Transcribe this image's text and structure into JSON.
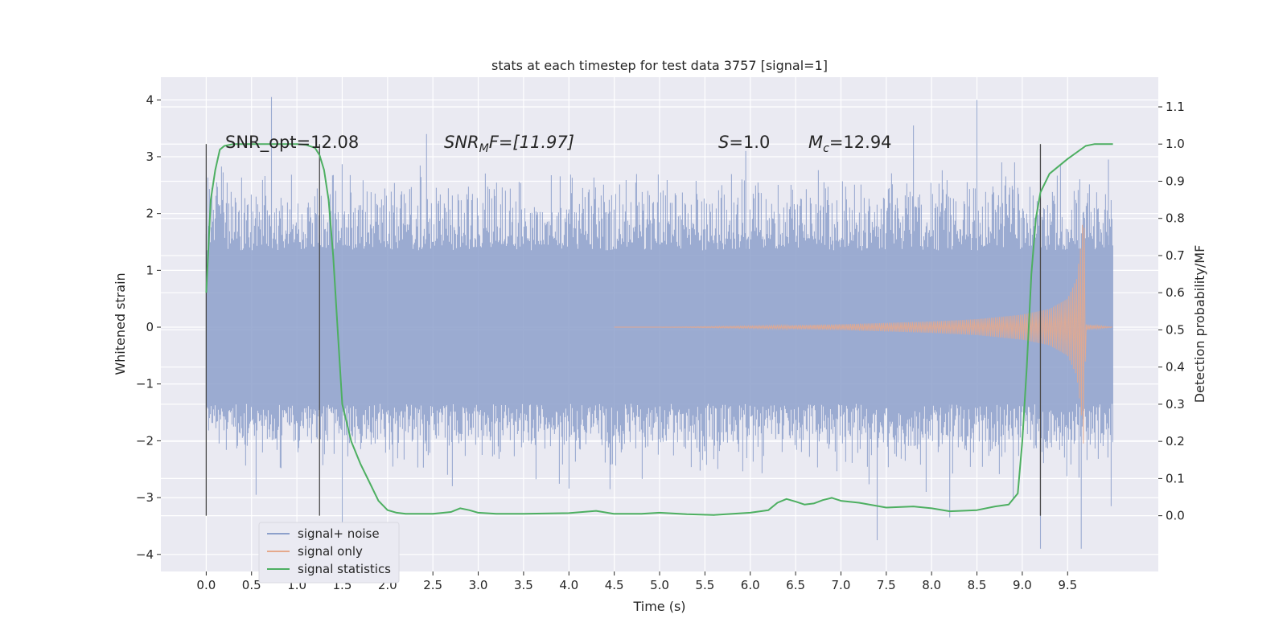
{
  "chart_data": {
    "type": "line",
    "title": "stats at each timestep for test data 3757 [signal=1]",
    "xlabel": "Time (s)",
    "ylabel": "Whitened strain",
    "y2label": "Detection probability/MF",
    "xlim": [
      -0.5,
      10.5
    ],
    "ylim": [
      -4.3,
      4.4
    ],
    "y2lim": [
      -0.15,
      1.18
    ],
    "x_ticks": [
      0.0,
      0.5,
      1.0,
      1.5,
      2.0,
      2.5,
      3.0,
      3.5,
      4.0,
      4.5,
      5.0,
      5.5,
      6.0,
      6.5,
      7.0,
      7.5,
      8.0,
      8.5,
      9.0,
      9.5
    ],
    "x_tick_labels": [
      "0.0",
      "0.5",
      "1.0",
      "1.5",
      "2.0",
      "2.5",
      "3.0",
      "3.5",
      "4.0",
      "4.5",
      "5.0",
      "5.5",
      "6.0",
      "6.5",
      "7.0",
      "7.5",
      "8.0",
      "8.5",
      "9.0",
      "9.5"
    ],
    "y_ticks": [
      4,
      3,
      2,
      1,
      0,
      -1,
      -2,
      -3,
      -4
    ],
    "y_tick_labels": [
      "4",
      "3",
      "2",
      "1",
      "0",
      "−1",
      "−2",
      "−3",
      "−4"
    ],
    "y2_ticks": [
      1.1,
      1.0,
      0.9,
      0.8,
      0.7,
      0.6,
      0.5,
      0.4,
      0.3,
      0.2,
      0.1,
      0.0
    ],
    "y2_tick_labels": [
      "1.1",
      "1.0",
      "0.9",
      "0.8",
      "0.7",
      "0.6",
      "0.5",
      "0.4",
      "0.3",
      "0.2",
      "0.1",
      "0.0"
    ],
    "grid": true,
    "legend_position": "bottom-left",
    "annotations": {
      "snr_opt": "SNR_opt=12.08",
      "snr_mf_base": "SNR",
      "snr_mf_sub": "M",
      "snr_mf_rest": "F=[11.97]",
      "s_base": "S",
      "s_rest": "=1.0",
      "mc_base": "M",
      "mc_sub": "c",
      "mc_rest": "=12.94"
    },
    "vertical_markers": [
      0.0,
      1.25,
      9.2
    ],
    "series": [
      {
        "name": "signal+ noise",
        "color": "#8da0cb",
        "axis": "left",
        "x_range": [
          0.0,
          10.0
        ],
        "typical_envelope": [
          -1.7,
          2.0
        ],
        "spikes": [
          {
            "x": 0.72,
            "y": 4.05
          },
          {
            "x": 8.5,
            "y": 4.0
          },
          {
            "x": 7.8,
            "y": 3.55
          },
          {
            "x": 2.43,
            "y": 3.4
          },
          {
            "x": 5.95,
            "y": 3.1
          },
          {
            "x": 9.95,
            "y": 2.95
          },
          {
            "x": 7.4,
            "y": -3.75
          },
          {
            "x": 9.65,
            "y": -3.9
          },
          {
            "x": 9.2,
            "y": -3.9
          },
          {
            "x": 1.5,
            "y": -3.6
          },
          {
            "x": 8.2,
            "y": -3.35
          },
          {
            "x": 9.98,
            "y": -3.15
          },
          {
            "x": 0.55,
            "y": -2.95
          },
          {
            "x": 8.9,
            "y": -3.0
          }
        ]
      },
      {
        "name": "signal only",
        "color": "#e5a98c",
        "axis": "left",
        "x": [
          0.0,
          5.0,
          6.0,
          7.0,
          8.0,
          8.5,
          9.0,
          9.3,
          9.5,
          9.6,
          9.65,
          9.68,
          9.7,
          10.0
        ],
        "amplitude": [
          0.0,
          0.0,
          0.02,
          0.05,
          0.1,
          0.14,
          0.22,
          0.32,
          0.5,
          0.85,
          1.5,
          2.2,
          0.05,
          0.0
        ]
      },
      {
        "name": "signal statistics",
        "color": "#4daf61",
        "axis": "right",
        "x": [
          0.0,
          0.05,
          0.1,
          0.15,
          0.2,
          0.3,
          0.5,
          0.8,
          1.0,
          1.1,
          1.2,
          1.25,
          1.3,
          1.35,
          1.4,
          1.45,
          1.5,
          1.6,
          1.7,
          1.8,
          1.9,
          2.0,
          2.1,
          2.2,
          2.5,
          2.7,
          2.8,
          2.9,
          3.0,
          3.2,
          3.5,
          4.0,
          4.3,
          4.5,
          4.8,
          5.0,
          5.3,
          5.6,
          6.0,
          6.2,
          6.3,
          6.4,
          6.5,
          6.6,
          6.7,
          6.8,
          6.9,
          7.0,
          7.2,
          7.5,
          7.8,
          8.0,
          8.2,
          8.5,
          8.7,
          8.85,
          8.95,
          9.0,
          9.05,
          9.1,
          9.15,
          9.2,
          9.3,
          9.5,
          9.7,
          9.8,
          10.0
        ],
        "values": [
          0.6,
          0.85,
          0.93,
          0.985,
          0.995,
          1.0,
          1.0,
          1.0,
          1.0,
          0.998,
          0.99,
          0.97,
          0.93,
          0.85,
          0.7,
          0.5,
          0.3,
          0.2,
          0.14,
          0.09,
          0.04,
          0.015,
          0.008,
          0.005,
          0.005,
          0.01,
          0.02,
          0.015,
          0.008,
          0.005,
          0.005,
          0.007,
          0.013,
          0.005,
          0.005,
          0.008,
          0.004,
          0.002,
          0.008,
          0.015,
          0.035,
          0.045,
          0.038,
          0.03,
          0.033,
          0.042,
          0.048,
          0.04,
          0.035,
          0.022,
          0.025,
          0.02,
          0.012,
          0.015,
          0.025,
          0.03,
          0.06,
          0.2,
          0.4,
          0.65,
          0.8,
          0.87,
          0.92,
          0.96,
          0.995,
          1.0,
          1.0
        ]
      }
    ]
  }
}
